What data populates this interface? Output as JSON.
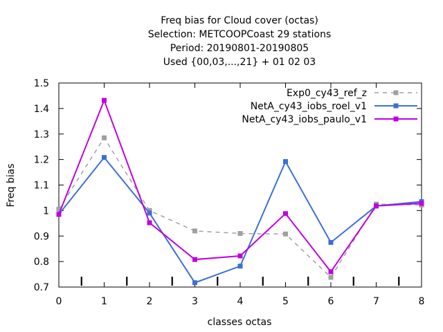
{
  "chart_data": {
    "type": "line",
    "title_lines": [
      "Freq bias  for Cloud cover (octas)",
      "Selection: METCOOPCoast     29 stations",
      "Period: 20190801-20190805",
      "Used {00,03,...,21} + 01 02 03"
    ],
    "xlabel": "classes octas",
    "ylabel": "Freq bias",
    "xlim": [
      0,
      8
    ],
    "ylim": [
      0.7,
      1.5
    ],
    "x_ticks": [
      0,
      1,
      2,
      3,
      4,
      5,
      6,
      7,
      8
    ],
    "x_tick_labels": [
      "0",
      "1",
      "2",
      "3",
      "4",
      "5",
      "6",
      "7",
      "8"
    ],
    "y_ticks": [
      0.7,
      0.8,
      0.9,
      1.0,
      1.1,
      1.2,
      1.3,
      1.4,
      1.5
    ],
    "y_tick_labels": [
      "0.7",
      "0.8",
      "0.9",
      "1",
      "1.1",
      "1.2",
      "1.3",
      "1.4",
      "1.5"
    ],
    "bottom_marks_x": [
      0.5,
      1.5,
      2.5,
      3.5,
      4.5,
      5.5,
      6.5,
      7.5
    ],
    "legend_position": "top-right",
    "grid": false,
    "x": [
      0,
      1,
      2,
      3,
      4,
      5,
      6,
      7,
      8
    ],
    "series": [
      {
        "name": "Exp0_cy43_ref_z",
        "values": [
          1.005,
          1.285,
          1.0,
          0.92,
          0.91,
          0.908,
          0.738,
          1.025,
          1.022
        ],
        "color": "#a0a0a0",
        "dash": true
      },
      {
        "name": "NetA_cy43_iobs_roel_v1",
        "values": [
          0.985,
          1.208,
          0.99,
          0.717,
          0.782,
          1.192,
          0.875,
          1.018,
          1.035
        ],
        "color": "#3a6fd8",
        "dash": false
      },
      {
        "name": "NetA_cy43_iobs_paulo_v1",
        "values": [
          0.985,
          1.432,
          0.952,
          0.808,
          0.822,
          0.988,
          0.76,
          1.018,
          1.028
        ],
        "color": "#c000e0",
        "dash": false
      }
    ]
  }
}
